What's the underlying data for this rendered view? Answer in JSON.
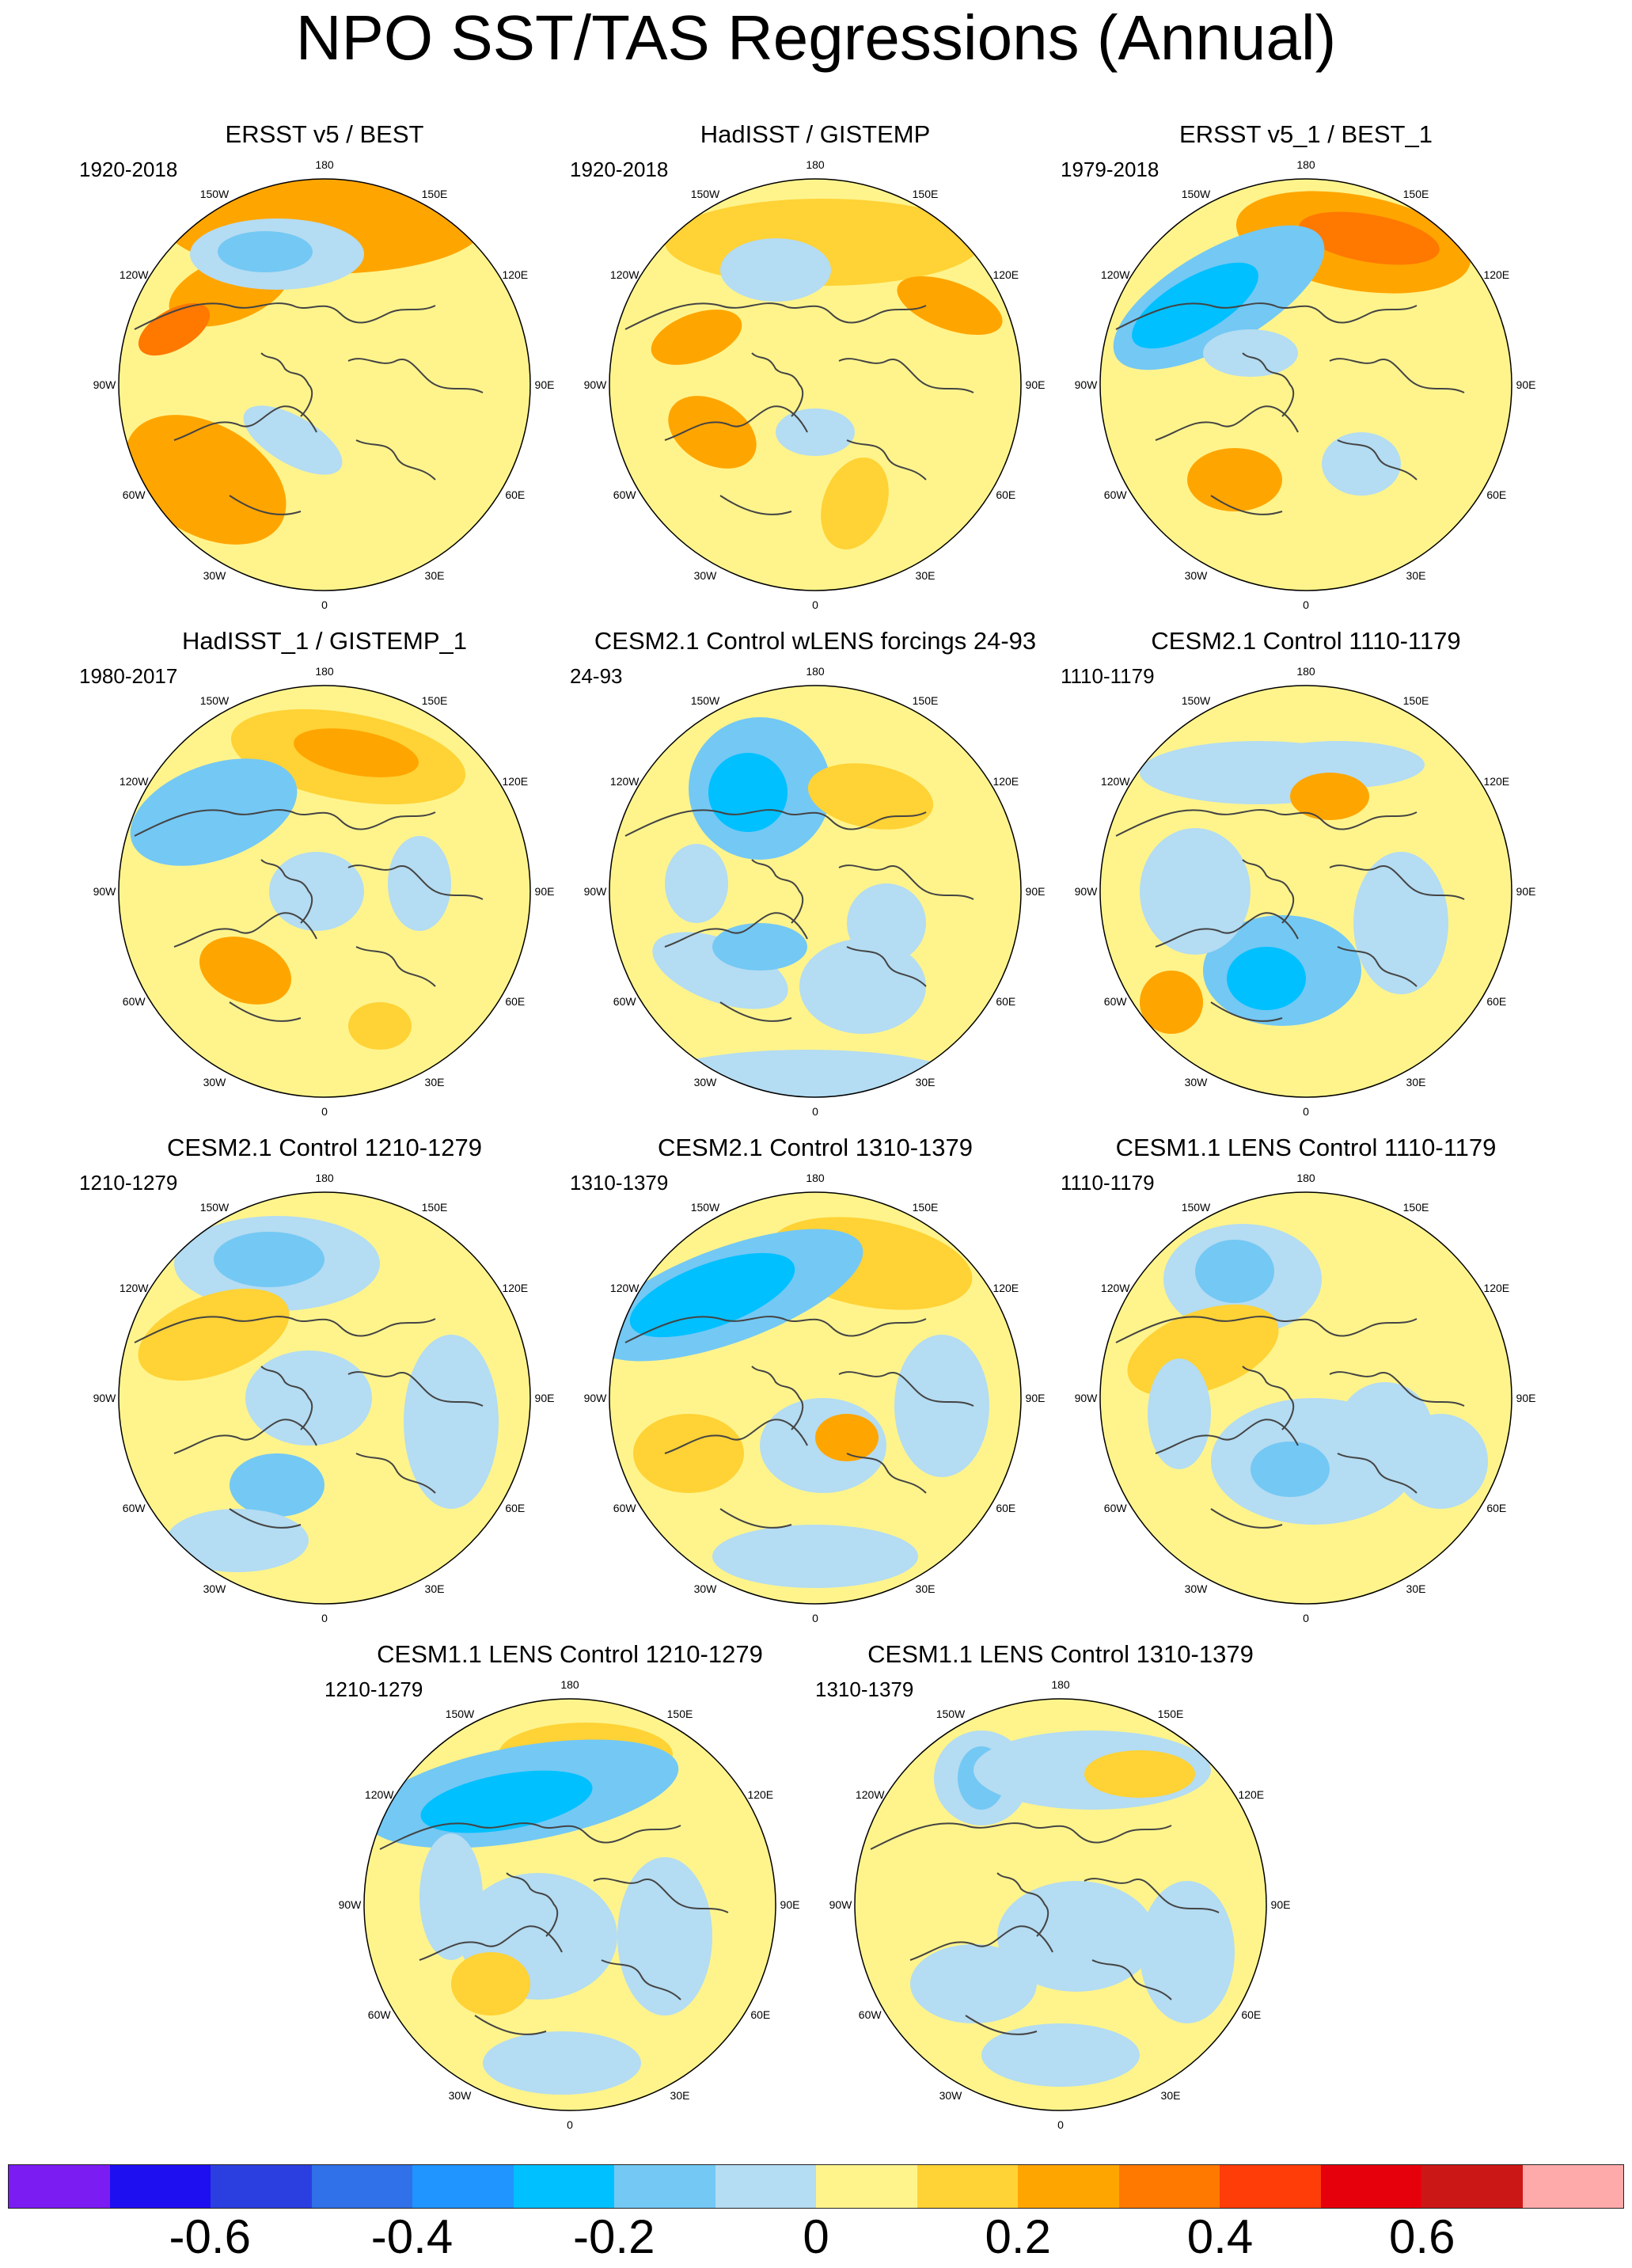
{
  "title": "NPO SST/TAS Regressions (Annual)",
  "panels": [
    {
      "title": "ERSST v5 / BEST",
      "period": "1920-2018",
      "pattern": "obs1"
    },
    {
      "title": "HadISST / GISTEMP",
      "period": "1920-2018",
      "pattern": "obs2"
    },
    {
      "title": "ERSST v5_1 / BEST_1",
      "period": "1979-2018",
      "pattern": "obs3"
    },
    {
      "title": "HadISST_1 / GISTEMP_1",
      "period": "1980-2017",
      "pattern": "obs4"
    },
    {
      "title": "CESM2.1 Control wLENS forcings 24-93",
      "period": "24-93",
      "pattern": "m1"
    },
    {
      "title": "CESM2.1 Control 1110-1179",
      "period": "1110-1179",
      "pattern": "m2"
    },
    {
      "title": "CESM2.1 Control 1210-1279",
      "period": "1210-1279",
      "pattern": "m3"
    },
    {
      "title": "CESM2.1 Control 1310-1379",
      "period": "1310-1379",
      "pattern": "m4"
    },
    {
      "title": "CESM1.1 LENS Control 1110-1179",
      "period": "1110-1179",
      "pattern": "m5"
    },
    {
      "title": "CESM1.1 LENS Control 1210-1279",
      "period": "1210-1279",
      "pattern": "m6"
    },
    {
      "title": "CESM1.1 LENS Control 1310-1379",
      "period": "1310-1379",
      "pattern": "m7"
    }
  ],
  "map": {
    "projection": "North polar stereographic",
    "longitude_labels": [
      "180",
      "150E",
      "120E",
      "90E",
      "60E",
      "30E",
      "0",
      "30W",
      "60W",
      "90W",
      "120W",
      "150W"
    ]
  },
  "colors": {
    "land_coast": "#444444",
    "background": "#ffffff"
  },
  "colorbar": {
    "colors": [
      "#7a1cf2",
      "#1e0ff0",
      "#2b3fe0",
      "#3070e8",
      "#2094ff",
      "#00c0ff",
      "#74c8f4",
      "#b4dcf2",
      "#fff48c",
      "#ffd235",
      "#ffa500",
      "#ff7800",
      "#ff3d08",
      "#e6000b",
      "#cc1717",
      "#ffaaaa"
    ],
    "tick_labels": [
      "-0.6",
      "-0.4",
      "-0.2",
      "0",
      "0.2",
      "0.4",
      "0.6"
    ],
    "tick_values": [
      -0.6,
      -0.4,
      -0.2,
      0,
      0.2,
      0.4,
      0.6
    ],
    "min": -0.8,
    "max": 0.8,
    "interval": 0.1
  }
}
